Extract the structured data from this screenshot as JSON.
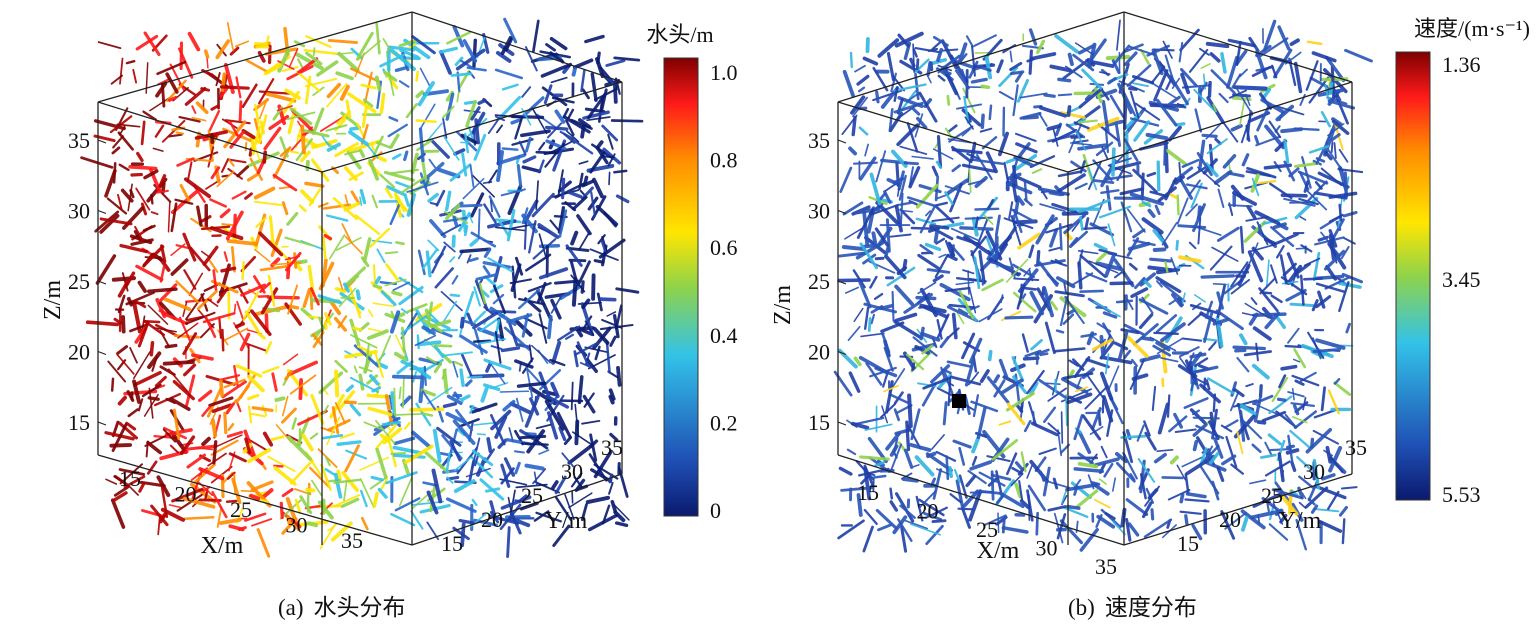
{
  "panels": [
    {
      "id": "a",
      "caption_label": "(a)",
      "caption_text": "水头分布",
      "colorbar_title": "水头/m",
      "colorbar_ticks": [
        "1.0",
        "0.8",
        "0.6",
        "0.4",
        "0.2",
        "0"
      ],
      "z_label": "Z/m",
      "z_ticks": [
        "35",
        "30",
        "25",
        "20",
        "15"
      ],
      "x_label": "X/m",
      "x_ticks": [
        "15",
        "20",
        "25",
        "30",
        "35"
      ],
      "y_label": "Y/m",
      "y_ticks": [
        "15",
        "20",
        "25",
        "30",
        "35"
      ],
      "colormap": "jet"
    },
    {
      "id": "b",
      "caption_label": "(b)",
      "caption_text": "速度分布",
      "colorbar_title": "速度/(m·s⁻¹)",
      "colorbar_ticks": [
        "1.36",
        "3.45",
        "5.53"
      ],
      "z_label": "Z/m",
      "z_ticks": [
        "35",
        "30",
        "25",
        "20",
        "15"
      ],
      "x_label": "X/m",
      "x_ticks": [
        "15",
        "20",
        "25",
        "30",
        "35"
      ],
      "y_label": "Y/m",
      "y_ticks": [
        "15",
        "20",
        "25",
        "30",
        "35"
      ],
      "colormap": "jet"
    }
  ],
  "colors": {
    "jet_top": "#7f0000",
    "jet_red": "#ff1a1a",
    "jet_orange": "#ff8c00",
    "jet_yellow": "#ffe600",
    "jet_cyan": "#33c2e8",
    "jet_blue": "#1f4fb4",
    "jet_bottom": "#0a1a6e"
  }
}
